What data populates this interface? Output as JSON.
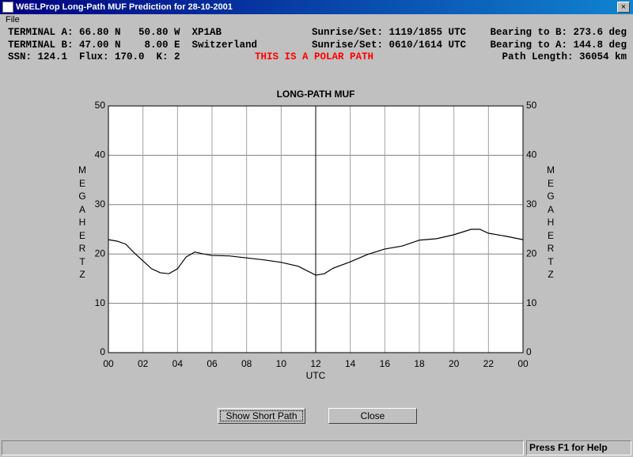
{
  "window": {
    "title": "W6ELProp Long-Path MUF Prediction for 28-10-2001",
    "menu": [
      "File"
    ]
  },
  "info": {
    "terminal_a": "TERMINAL A: 66.80 N   50.80 W  XP1AB",
    "terminal_b": "TERMINAL B: 47.00 N    8.00 E  Switzerland",
    "conditions": "SSN: 124.1  Flux: 170.0  K: 2",
    "sun_a": "Sunrise/Set: 1119/1855 UTC",
    "sun_b": "Sunrise/Set: 0610/1614 UTC",
    "bearing_b": "Bearing to B: 273.6 deg",
    "bearing_a": "Bearing to A: 144.8 deg",
    "polar_note": "THIS IS A POLAR PATH",
    "path_length": "Path Length: 36054 km"
  },
  "chart_data": {
    "type": "line",
    "title": "LONG-PATH MUF",
    "x_label": "UTC",
    "y_label": "MEGAHERTZ",
    "color": "#000000",
    "grid": true,
    "x": [
      0,
      0.5,
      1,
      1.5,
      2,
      2.5,
      3,
      3.5,
      4,
      4.5,
      5,
      5.5,
      6,
      7,
      8,
      9,
      10,
      11,
      12,
      12.5,
      13,
      14,
      15,
      16,
      17,
      18,
      19,
      20,
      21,
      21.5,
      22,
      23,
      24
    ],
    "values": [
      22.9,
      22.6,
      22.0,
      20.2,
      18.6,
      17.0,
      16.2,
      16.0,
      17.0,
      19.4,
      20.4,
      20.0,
      19.7,
      19.6,
      19.2,
      18.8,
      18.3,
      17.5,
      15.7,
      16.0,
      17.1,
      18.4,
      19.9,
      21.0,
      21.6,
      22.8,
      23.1,
      23.9,
      25.0,
      25.0,
      24.2,
      23.6,
      22.9
    ],
    "xlim": [
      0,
      24
    ],
    "xticks": [
      {
        "value": 0,
        "label": "00"
      },
      {
        "value": 2,
        "label": "02"
      },
      {
        "value": 4,
        "label": "04"
      },
      {
        "value": 6,
        "label": "06"
      },
      {
        "value": 8,
        "label": "08"
      },
      10,
      12,
      14,
      16,
      18,
      20,
      22,
      {
        "value": 24,
        "label": "00"
      }
    ],
    "ylim": [
      0,
      50
    ],
    "yticks": [
      0,
      10,
      20,
      30,
      40,
      50
    ]
  },
  "buttons": [
    "Show Short Path",
    "Close"
  ],
  "status": "Press F1 for Help"
}
